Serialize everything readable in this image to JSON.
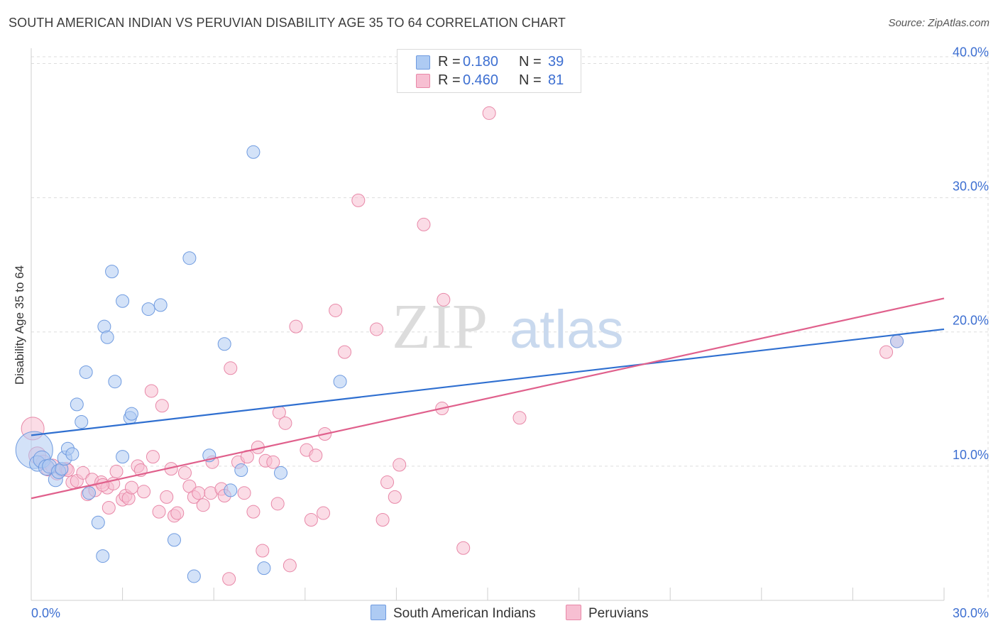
{
  "title": "SOUTH AMERICAN INDIAN VS PERUVIAN DISABILITY AGE 35 TO 64 CORRELATION CHART",
  "source": "Source: ZipAtlas.com",
  "watermark": {
    "zip": "ZIP",
    "atlas": "atlas"
  },
  "legend_top": [
    {
      "r_label": "R =",
      "r_value": "0.180",
      "n_label": "N =",
      "n_value": "39"
    },
    {
      "r_label": "R =",
      "r_value": "0.460",
      "n_label": "N =",
      "n_value": "81"
    }
  ],
  "legend_bottom": [
    "South American Indians",
    "Peruvians"
  ],
  "colors": {
    "blue_fill": "#aecbf3",
    "blue_edge": "#6f9be0",
    "blue_line": "#2f6fd0",
    "pink_fill": "#f7bfd2",
    "pink_edge": "#e888a8",
    "pink_line": "#e0608c",
    "tick_label": "#3d6fd1",
    "grid": "#dddddd"
  },
  "chart_data": {
    "type": "scatter",
    "title": "SOUTH AMERICAN INDIAN VS PERUVIAN DISABILITY AGE 35 TO 64 CORRELATION CHART",
    "xlabel": "",
    "ylabel": "Disability Age 35 to 64",
    "xlim": [
      0,
      30
    ],
    "ylim": [
      0,
      40.5
    ],
    "x_tick_labels": [
      "0.0%",
      "30.0%"
    ],
    "y_ticks": [
      10,
      20,
      30,
      40
    ],
    "y_tick_labels": [
      "10.0%",
      "20.0%",
      "30.0%",
      "40.0%"
    ],
    "series": [
      {
        "name": "South American Indians",
        "R": 0.18,
        "N": 39,
        "trend": {
          "x": [
            0,
            30
          ],
          "y": [
            12.3,
            20.2
          ]
        },
        "points": [
          [
            0.1,
            11.2,
            26
          ],
          [
            0.2,
            10.2,
            11
          ],
          [
            0.35,
            10.5,
            12
          ],
          [
            0.5,
            9.9,
            11
          ],
          [
            0.6,
            10.0,
            10
          ],
          [
            0.8,
            9.0,
            10
          ],
          [
            0.9,
            9.6,
            10
          ],
          [
            1.0,
            9.8,
            9
          ],
          [
            1.1,
            10.6,
            10
          ],
          [
            1.2,
            11.3,
            9
          ],
          [
            1.35,
            10.9,
            9
          ],
          [
            1.5,
            14.6,
            9
          ],
          [
            1.65,
            13.3,
            9
          ],
          [
            1.8,
            17.0,
            9
          ],
          [
            1.9,
            8.0,
            9
          ],
          [
            2.2,
            5.8,
            9
          ],
          [
            2.35,
            3.3,
            9
          ],
          [
            2.4,
            20.4,
            9
          ],
          [
            2.5,
            19.6,
            9
          ],
          [
            2.65,
            24.5,
            9
          ],
          [
            2.75,
            16.3,
            9
          ],
          [
            3.0,
            22.3,
            9
          ],
          [
            3.0,
            10.7,
            9
          ],
          [
            3.25,
            13.6,
            9
          ],
          [
            3.3,
            13.9,
            9
          ],
          [
            3.85,
            21.7,
            9
          ],
          [
            4.25,
            22.0,
            9
          ],
          [
            4.7,
            4.5,
            9
          ],
          [
            5.2,
            25.5,
            9
          ],
          [
            5.35,
            1.8,
            9
          ],
          [
            5.85,
            10.8,
            9
          ],
          [
            6.35,
            19.1,
            9
          ],
          [
            6.55,
            8.2,
            9
          ],
          [
            6.9,
            9.7,
            9
          ],
          [
            7.3,
            33.4,
            9
          ],
          [
            7.65,
            2.4,
            9
          ],
          [
            8.2,
            9.5,
            9
          ],
          [
            10.15,
            16.3,
            9
          ],
          [
            28.45,
            19.3,
            9
          ]
        ]
      },
      {
        "name": "Peruvians",
        "R": 0.46,
        "N": 81,
        "trend": {
          "x": [
            0,
            30
          ],
          "y": [
            7.6,
            22.5
          ]
        },
        "points": [
          [
            0.05,
            12.8,
            16
          ],
          [
            0.2,
            10.8,
            12
          ],
          [
            0.4,
            10.3,
            10
          ],
          [
            0.55,
            9.8,
            10
          ],
          [
            0.7,
            10.0,
            10
          ],
          [
            0.85,
            9.5,
            10
          ],
          [
            1.0,
            9.7,
            9
          ],
          [
            1.15,
            9.8,
            9
          ],
          [
            1.35,
            8.8,
            9
          ],
          [
            1.5,
            8.9,
            9
          ],
          [
            1.7,
            9.5,
            9
          ],
          [
            1.85,
            7.9,
            9
          ],
          [
            2.0,
            9.0,
            9
          ],
          [
            2.1,
            8.2,
            9
          ],
          [
            2.3,
            8.8,
            9
          ],
          [
            2.5,
            8.4,
            9
          ],
          [
            2.55,
            6.9,
            9
          ],
          [
            2.7,
            8.7,
            9
          ],
          [
            2.8,
            9.6,
            9
          ],
          [
            3.0,
            7.5,
            9
          ],
          [
            3.1,
            7.8,
            9
          ],
          [
            3.2,
            7.6,
            9
          ],
          [
            3.3,
            8.4,
            9
          ],
          [
            3.5,
            10.0,
            9
          ],
          [
            3.6,
            9.7,
            9
          ],
          [
            3.7,
            8.1,
            9
          ],
          [
            3.95,
            15.6,
            9
          ],
          [
            4.0,
            10.7,
            9
          ],
          [
            4.2,
            6.6,
            9
          ],
          [
            4.3,
            14.5,
            9
          ],
          [
            4.45,
            7.7,
            9
          ],
          [
            4.6,
            9.8,
            9
          ],
          [
            4.7,
            6.3,
            9
          ],
          [
            4.8,
            6.5,
            9
          ],
          [
            5.05,
            9.5,
            9
          ],
          [
            5.2,
            8.5,
            9
          ],
          [
            5.35,
            7.7,
            9
          ],
          [
            5.5,
            8.0,
            9
          ],
          [
            5.65,
            7.1,
            9
          ],
          [
            5.95,
            10.3,
            9
          ],
          [
            5.9,
            8.0,
            9
          ],
          [
            6.25,
            8.3,
            9
          ],
          [
            6.35,
            7.8,
            9
          ],
          [
            6.55,
            17.3,
            9
          ],
          [
            6.8,
            10.3,
            9
          ],
          [
            7.0,
            8.0,
            9
          ],
          [
            7.1,
            10.7,
            9
          ],
          [
            7.3,
            6.6,
            9
          ],
          [
            7.45,
            11.4,
            9
          ],
          [
            7.6,
            3.7,
            9
          ],
          [
            7.7,
            10.4,
            9
          ],
          [
            7.95,
            10.3,
            9
          ],
          [
            8.1,
            7.2,
            9
          ],
          [
            8.15,
            14.0,
            9
          ],
          [
            8.35,
            13.2,
            9
          ],
          [
            8.5,
            2.6,
            9
          ],
          [
            8.7,
            20.4,
            9
          ],
          [
            9.05,
            11.2,
            9
          ],
          [
            9.2,
            6.0,
            9
          ],
          [
            9.35,
            10.8,
            9
          ],
          [
            9.6,
            6.5,
            9
          ],
          [
            9.65,
            12.4,
            9
          ],
          [
            10.0,
            21.6,
            9
          ],
          [
            10.3,
            18.5,
            9
          ],
          [
            10.75,
            29.8,
            9
          ],
          [
            11.35,
            20.2,
            9
          ],
          [
            11.55,
            6.0,
            9
          ],
          [
            11.7,
            8.8,
            9
          ],
          [
            11.95,
            7.7,
            9
          ],
          [
            12.1,
            10.1,
            9
          ],
          [
            12.9,
            28.0,
            9
          ],
          [
            13.5,
            14.3,
            9
          ],
          [
            13.55,
            22.4,
            9
          ],
          [
            14.2,
            3.9,
            9
          ],
          [
            15.05,
            36.3,
            9
          ],
          [
            16.05,
            13.6,
            9
          ],
          [
            28.1,
            18.5,
            9
          ],
          [
            28.45,
            19.3,
            9
          ],
          [
            6.5,
            1.6,
            9
          ],
          [
            2.35,
            8.6,
            9
          ],
          [
            1.2,
            9.7,
            9
          ]
        ]
      }
    ]
  }
}
